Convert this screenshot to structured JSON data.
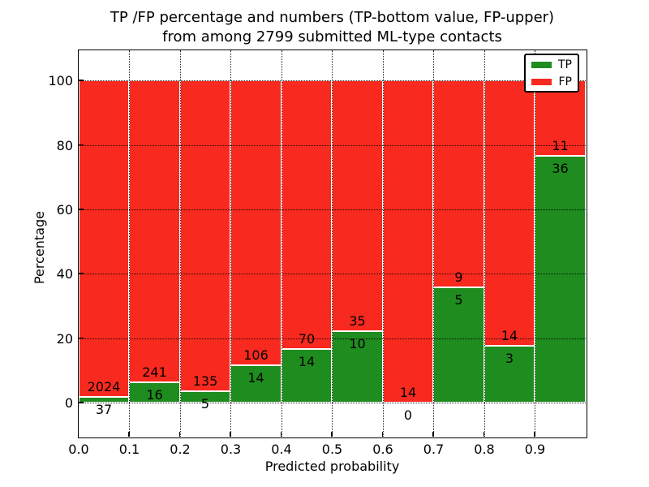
{
  "figure": {
    "title_line1": "TP /FP percentage and numbers (TP-bottom value, FP-upper)",
    "title_line2": "from among 2799 submitted ML-type contacts"
  },
  "chart_data": {
    "type": "bar",
    "subtype": "stacked-percentage",
    "title": "TP /FP percentage and numbers (TP-bottom value, FP-upper) from among 2799 submitted ML-type contacts",
    "xlabel": "Predicted probability",
    "ylabel": "Percentage",
    "total_contacts": 2799,
    "bin_starts": [
      0.0,
      0.1,
      0.2,
      0.3,
      0.4,
      0.5,
      0.6,
      0.7,
      0.8,
      0.9
    ],
    "bin_width": 0.1,
    "series": [
      {
        "name": "TP",
        "color": "#1e8c1e",
        "counts": [
          37,
          16,
          5,
          14,
          14,
          10,
          0,
          5,
          3,
          36
        ]
      },
      {
        "name": "FP",
        "color": "#f8291e",
        "counts": [
          2024,
          241,
          135,
          106,
          70,
          35,
          14,
          9,
          14,
          11
        ]
      }
    ],
    "tp_percent": [
      1.8,
      6.2,
      3.6,
      11.7,
      16.7,
      22.2,
      0.0,
      35.7,
      17.6,
      76.6
    ],
    "bar_total_percent": 100,
    "xlim": [
      0.0,
      1.0
    ],
    "ylim": [
      -10.5,
      109.5
    ],
    "yticks": [
      0,
      20,
      40,
      60,
      80,
      100
    ],
    "ytick_labels": [
      "0",
      "20",
      "40",
      "60",
      "80",
      "100"
    ],
    "xticks": [
      0.0,
      0.1,
      0.2,
      0.3,
      0.4,
      0.5,
      0.6,
      0.7,
      0.8,
      0.9
    ],
    "xtick_labels": [
      "0.0",
      "0.1",
      "0.2",
      "0.3",
      "0.4",
      "0.5",
      "0.6",
      "0.7",
      "0.8",
      "0.9"
    ],
    "grid": "dotted",
    "legend": {
      "position": "upper right",
      "entries": [
        {
          "label": "TP",
          "color": "#1e8c1e"
        },
        {
          "label": "FP",
          "color": "#f8291e"
        }
      ]
    }
  }
}
